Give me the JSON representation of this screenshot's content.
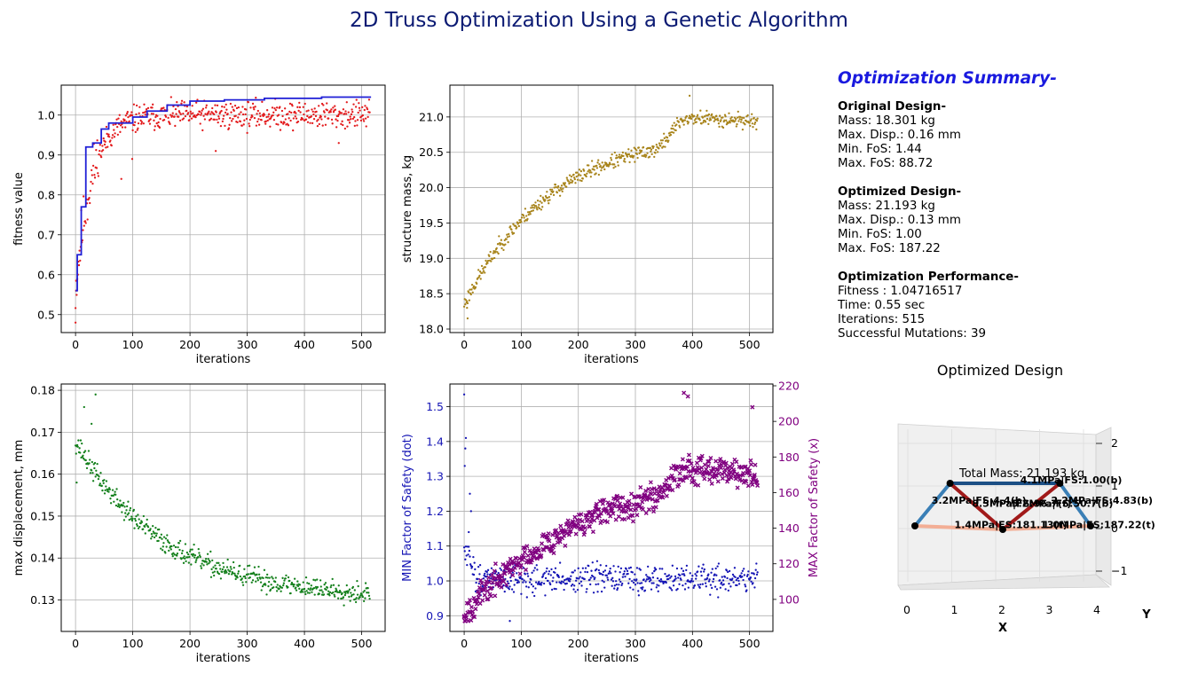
{
  "title": "2D Truss Optimization Using a Genetic Algorithm",
  "summary": {
    "title": "Optimization Summary-",
    "original": {
      "heading": "Original Design-",
      "lines": [
        "Mass: 18.301 kg",
        "Max. Disp.: 0.16 mm",
        "Min. FoS: 1.44",
        "Max. FoS: 88.72"
      ]
    },
    "optimized": {
      "heading": "Optimized Design-",
      "lines": [
        "Mass: 21.193 kg",
        "Max. Disp.: 0.13 mm",
        "Min. FoS: 1.00",
        "Max. FoS: 187.22"
      ]
    },
    "performance": {
      "heading": "Optimization Performance-",
      "lines": [
        "Fitness :  1.04716517",
        "Time:  0.55 sec",
        "Iterations: 515",
        "Successful Mutations: 39"
      ]
    }
  },
  "colors": {
    "title": "#0b1a73",
    "fitness_dots": "#e31a1c",
    "fitness_line": "#1f1fd6",
    "mass_dots": "#a8841b",
    "disp_dots": "#14801c",
    "min_fos": "#1515b5",
    "max_fos": "#800080",
    "member_blue": "#3a7fb6",
    "member_navy": "#1c4f85",
    "member_red": "#a11a1a",
    "member_salmon": "#f3ae95"
  },
  "chart_data": [
    {
      "id": "fitness",
      "type": "scatter",
      "xlabel": "iterations",
      "ylabel": "fitness value",
      "xlim": [
        -25,
        541
      ],
      "ylim": [
        0.455,
        1.075
      ],
      "xticks": [
        0,
        100,
        200,
        300,
        400,
        500
      ],
      "yticks": [
        0.5,
        0.6,
        0.7,
        0.8,
        0.9,
        1.0
      ],
      "ytick_labels": [
        "0.5",
        "0.6",
        "0.7",
        "0.8",
        "0.9",
        "1.0"
      ],
      "grid": true,
      "series": [
        {
          "kind": "scatter",
          "color": "red",
          "n": 515,
          "model": "rising",
          "start": 0.56,
          "end": 1.0,
          "rate": 28,
          "noise": 0.03,
          "seed": 11,
          "points": [
            [
              0,
              0.48
            ],
            [
              1,
              0.56
            ],
            [
              80,
              0.84
            ],
            [
              99,
              0.89
            ],
            [
              245,
              0.91
            ],
            [
              460,
              0.93
            ]
          ]
        },
        {
          "kind": "step",
          "color": "blue",
          "steps": [
            [
              0,
              0.56
            ],
            [
              3,
              0.65
            ],
            [
              10,
              0.77
            ],
            [
              18,
              0.92
            ],
            [
              30,
              0.93
            ],
            [
              45,
              0.965
            ],
            [
              58,
              0.98
            ],
            [
              100,
              0.995
            ],
            [
              125,
              1.01
            ],
            [
              160,
              1.025
            ],
            [
              200,
              1.035
            ],
            [
              260,
              1.038
            ],
            [
              330,
              1.042
            ],
            [
              430,
              1.045
            ],
            [
              515,
              1.047
            ]
          ]
        }
      ]
    },
    {
      "id": "mass",
      "type": "scatter",
      "xlabel": "iterations",
      "ylabel": "structure mass, kg",
      "xlim": [
        -25,
        541
      ],
      "ylim": [
        17.95,
        21.45
      ],
      "xticks": [
        0,
        100,
        200,
        300,
        400,
        500
      ],
      "yticks": [
        18.0,
        18.5,
        19.0,
        19.5,
        20.0,
        20.5,
        21.0
      ],
      "ytick_labels": [
        "18.0",
        "18.5",
        "19.0",
        "19.5",
        "20.0",
        "20.5",
        "21.0"
      ],
      "grid": true,
      "series": [
        {
          "kind": "scatter",
          "color": "gold",
          "n": 515,
          "model": "mass",
          "noise": 0.09,
          "seed": 23,
          "points": [
            [
              5,
              18.3
            ],
            [
              6,
              18.15
            ],
            [
              395,
              21.3
            ]
          ]
        }
      ]
    },
    {
      "id": "displacement",
      "type": "scatter",
      "xlabel": "iterations",
      "ylabel": "max displacement, mm",
      "xlim": [
        -25,
        541
      ],
      "ylim": [
        0.1225,
        0.1815
      ],
      "xticks": [
        0,
        100,
        200,
        300,
        400,
        500
      ],
      "yticks": [
        0.13,
        0.14,
        0.15,
        0.16,
        0.17,
        0.18
      ],
      "ytick_labels": [
        "0.13",
        "0.14",
        "0.15",
        "0.16",
        "0.17",
        "0.18"
      ],
      "grid": true,
      "series": [
        {
          "kind": "scatter",
          "color": "green",
          "n": 515,
          "model": "decay",
          "start": 0.168,
          "end": 0.1305,
          "rate": 150,
          "noise": 0.0022,
          "seed": 37,
          "points": [
            [
              15,
              0.176
            ],
            [
              28,
              0.172
            ],
            [
              35,
              0.179
            ],
            [
              2,
              0.158
            ]
          ]
        }
      ]
    },
    {
      "id": "factor_of_safety",
      "type": "scatter",
      "xlabel": "iterations",
      "ylabel": "MIN Factor of Safety (dot)",
      "ylabel_right": "MAX Factor of Safety (x)",
      "xlim": [
        -25,
        541
      ],
      "ylim": [
        0.855,
        1.565
      ],
      "ylim_right": [
        82,
        221
      ],
      "xticks": [
        0,
        100,
        200,
        300,
        400,
        500
      ],
      "yticks": [
        0.9,
        1.0,
        1.1,
        1.2,
        1.3,
        1.4,
        1.5
      ],
      "ytick_labels": [
        "0.9",
        "1.0",
        "1.1",
        "1.2",
        "1.3",
        "1.4",
        "1.5"
      ],
      "yticks_right": [
        100,
        120,
        140,
        160,
        180,
        200,
        220
      ],
      "grid": true,
      "series": [
        {
          "kind": "scatter",
          "axis": "left",
          "color": "blue",
          "n": 515,
          "model": "minfos",
          "noise": 0.035,
          "seed": 51,
          "points": [
            [
              0,
              1.535
            ],
            [
              2,
              1.38
            ],
            [
              3,
              1.41
            ],
            [
              1,
              1.33
            ],
            [
              10,
              1.25
            ],
            [
              12,
              1.2
            ],
            [
              8,
              1.14
            ],
            [
              80,
              0.885
            ]
          ]
        },
        {
          "kind": "scatter",
          "axis": "right",
          "color": "purple",
          "n": 515,
          "model": "maxfos",
          "noise": 6.5,
          "seed": 67,
          "points": [
            [
              0,
              90
            ],
            [
              385,
              216
            ],
            [
              392,
              214
            ],
            [
              505,
              208
            ]
          ]
        }
      ]
    },
    {
      "id": "optimized_design",
      "type": "scatter",
      "title": "Optimized Design",
      "xlabel": "X",
      "ylabel": "Y",
      "xticks": [
        0,
        1,
        2,
        3,
        4
      ],
      "zticks": [
        -1,
        0,
        1,
        2
      ],
      "zlim": [
        -1.5,
        2.5
      ],
      "annotation": "Total Mass: 21.193 kg",
      "nodes": [
        [
          0,
          0
        ],
        [
          2,
          0
        ],
        [
          4,
          0
        ],
        [
          0.8,
          1
        ],
        [
          3.3,
          1
        ]
      ],
      "members": [
        {
          "from": [
            0,
            0
          ],
          "to": [
            0.8,
            1
          ],
          "color": "blue",
          "width": 4
        },
        {
          "from": [
            0.8,
            1
          ],
          "to": [
            3.3,
            1
          ],
          "color": "navy",
          "width": 4
        },
        {
          "from": [
            3.3,
            1
          ],
          "to": [
            4,
            0
          ],
          "color": "blue",
          "width": 4
        },
        {
          "from": [
            0.8,
            1
          ],
          "to": [
            2,
            0
          ],
          "color": "red",
          "width": 4
        },
        {
          "from": [
            2,
            0
          ],
          "to": [
            3.3,
            1
          ],
          "color": "red",
          "width": 4
        },
        {
          "from": [
            0,
            0
          ],
          "to": [
            2,
            0
          ],
          "color": "salmon",
          "width": 4
        },
        {
          "from": [
            2,
            0
          ],
          "to": [
            4,
            0
          ],
          "color": "salmon",
          "width": 4
        }
      ],
      "labels": [
        {
          "text": "4.1MPa|FS:1.00(b)",
          "at": [
            2.4,
            1.1
          ]
        },
        {
          "text": "3.2MPa|FS:4.4(b)",
          "at": [
            0.38,
            0.62
          ]
        },
        {
          "text": "8.5MPa|FS:96.7(t)",
          "at": [
            1.3,
            0.55
          ]
        },
        {
          "text": "5.2MPa|FS:50.7(b)",
          "at": [
            2.2,
            0.55
          ]
        },
        {
          "text": "2.2MPa|FS:4.83(b)",
          "at": [
            3.1,
            0.62
          ]
        },
        {
          "text": "1.4MPa|FS:181.13(t)",
          "at": [
            0.9,
            0.05
          ]
        },
        {
          "text": "1.0MPa|FS:187.22(t)",
          "at": [
            2.9,
            0.05
          ]
        }
      ]
    }
  ]
}
